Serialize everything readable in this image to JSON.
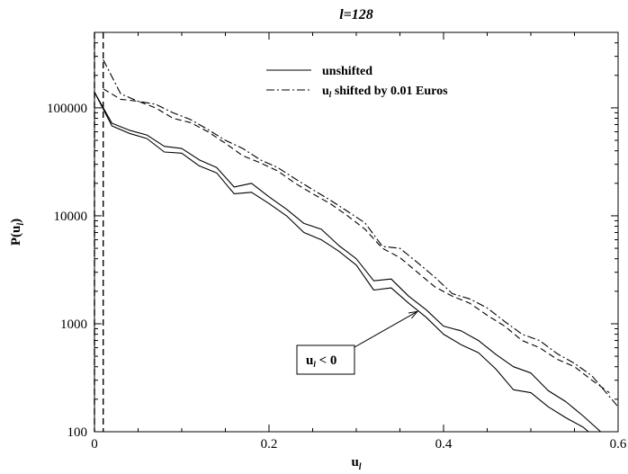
{
  "chart_data": {
    "type": "line",
    "title": {
      "main": "l",
      "sub": "=128"
    },
    "xlabel": {
      "main": "u",
      "sub": "l"
    },
    "ylabel": {
      "main": "P(u",
      "sub": "l",
      "close": ")"
    },
    "xlim": [
      0,
      0.6
    ],
    "ylim": [
      100,
      500000
    ],
    "y_scale": "log",
    "x_ticks": [
      0,
      0.2,
      0.4,
      0.6
    ],
    "x_tick_labels": [
      "0",
      "0.2",
      "0.4",
      "0.6"
    ],
    "y_ticks": [
      100,
      1000,
      10000,
      100000
    ],
    "y_tick_labels": [
      "100",
      "1000",
      "10000",
      "100000"
    ],
    "grid": false,
    "legend_position": "top-right",
    "legend": [
      {
        "style": "solid",
        "text_main": "unshifted"
      },
      {
        "style": "dashdot",
        "text_main": "u",
        "text_sub": "l",
        "text_rest": " shifted by 0.01 Euros"
      }
    ],
    "annotation": {
      "text_main": "u",
      "text_sub": "l",
      "text_rest": " < 0",
      "points_to_x": 0.37,
      "points_to_y": 1300
    },
    "reference_lines": [
      {
        "name": "u_l = 0",
        "x": 0,
        "style": "dashed"
      },
      {
        "name": "u_l = 0.01",
        "x": 0.01,
        "style": "dashed"
      }
    ],
    "series": [
      {
        "style": "solid",
        "x": [
          0,
          0.02,
          0.04,
          0.06,
          0.08,
          0.1,
          0.12,
          0.14,
          0.16,
          0.18,
          0.2,
          0.22,
          0.24,
          0.26,
          0.28,
          0.3,
          0.32,
          0.34,
          0.36,
          0.38,
          0.4,
          0.42,
          0.44,
          0.46,
          0.48,
          0.5,
          0.52,
          0.54,
          0.56,
          0.58
        ],
        "y": [
          140000,
          72000,
          62000,
          56000,
          44000,
          42000,
          33000,
          28000,
          18500,
          20000,
          15000,
          11500,
          8500,
          7500,
          5300,
          4000,
          2500,
          2600,
          1800,
          1350,
          950,
          860,
          700,
          520,
          400,
          350,
          240,
          190,
          140,
          100
        ]
      },
      {
        "style": "solid",
        "x": [
          0,
          0.02,
          0.04,
          0.06,
          0.08,
          0.1,
          0.12,
          0.14,
          0.16,
          0.18,
          0.2,
          0.22,
          0.24,
          0.26,
          0.28,
          0.3,
          0.32,
          0.34,
          0.36,
          0.38,
          0.4,
          0.42,
          0.44,
          0.46,
          0.48,
          0.5,
          0.52,
          0.54,
          0.56,
          0.58
        ],
        "y": [
          140000,
          68000,
          58000,
          52000,
          39000,
          38000,
          29000,
          25000,
          16000,
          16500,
          13000,
          10000,
          7000,
          6000,
          4700,
          3500,
          2050,
          2150,
          1550,
          1150,
          800,
          640,
          540,
          380,
          245,
          230,
          170,
          135,
          110,
          80
        ]
      },
      {
        "style": "dashed",
        "x": [
          0.01,
          0.03,
          0.05,
          0.07,
          0.09,
          0.11,
          0.13,
          0.15,
          0.17,
          0.19,
          0.21,
          0.23,
          0.25,
          0.27,
          0.29,
          0.31,
          0.33,
          0.35,
          0.37,
          0.39,
          0.41,
          0.43,
          0.45,
          0.47,
          0.49,
          0.51,
          0.53,
          0.55,
          0.57,
          0.59
        ],
        "y": [
          150000,
          120000,
          115000,
          100000,
          80000,
          73000,
          60000,
          47000,
          36000,
          31000,
          26000,
          20000,
          16000,
          13000,
          10000,
          7500,
          5000,
          4100,
          3000,
          2200,
          1800,
          1550,
          1200,
          950,
          700,
          600,
          470,
          400,
          300,
          230
        ]
      },
      {
        "style": "dashdot",
        "x": [
          0.01,
          0.03,
          0.05,
          0.07,
          0.09,
          0.11,
          0.13,
          0.15,
          0.17,
          0.19,
          0.21,
          0.23,
          0.25,
          0.27,
          0.29,
          0.31,
          0.33,
          0.35,
          0.37,
          0.39,
          0.41,
          0.43,
          0.45,
          0.47,
          0.49,
          0.51,
          0.53,
          0.55,
          0.57,
          0.6
        ],
        "y": [
          280000,
          135000,
          115000,
          108000,
          90000,
          78000,
          63000,
          50000,
          42000,
          33000,
          28000,
          22000,
          17500,
          14000,
          11000,
          8600,
          5200,
          5000,
          3700,
          2700,
          1900,
          1700,
          1400,
          1050,
          800,
          700,
          530,
          430,
          330,
          170
        ]
      }
    ]
  }
}
